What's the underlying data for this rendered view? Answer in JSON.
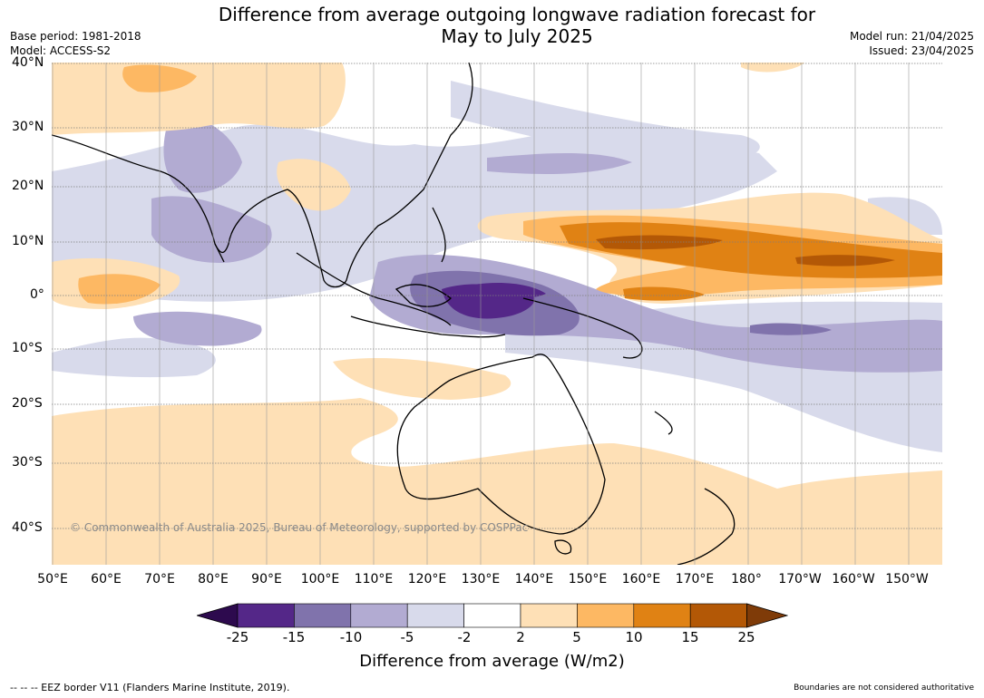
{
  "title": {
    "line1": "Difference from average outgoing longwave radiation forecast for",
    "line2": "May to July 2025"
  },
  "meta": {
    "base_period": "Base period: 1981-2018",
    "model": "Model: ACCESS-S2",
    "model_run": "Model run: 21/04/2025",
    "issued": "Issued: 23/04/2025"
  },
  "latitude_labels": [
    "40°N",
    "30°N",
    "20°N",
    "10°N",
    "0°",
    "10°S",
    "20°S",
    "30°S",
    "40°S"
  ],
  "longitude_labels": [
    "50°E",
    "60°E",
    "70°E",
    "80°E",
    "90°E",
    "100°E",
    "110°E",
    "120°E",
    "130°E",
    "140°E",
    "150°E",
    "160°E",
    "170°E",
    "180°",
    "170°W",
    "160°W",
    "150°W"
  ],
  "copyright": "© Commonwealth of Australia 2025, Bureau of Meteorology, supported by COSPPac",
  "colorbar": {
    "ticks": [
      "-25",
      "-15",
      "-10",
      "-5",
      "-2",
      "2",
      "5",
      "10",
      "15",
      "25"
    ],
    "colors": [
      "#2d0a4e",
      "#542788",
      "#8073ac",
      "#b2abd2",
      "#d8daeb",
      "#ffffff",
      "#fee0b6",
      "#fdb863",
      "#e08214",
      "#b35806",
      "#7f3b08"
    ],
    "label": "Difference from average (W/m2)"
  },
  "footer": {
    "eez_legend": "--  --  -- EEZ border V11 (Flanders Marine Institute, 2019).",
    "disclaimer": "Boundaries are not considered authoritative"
  }
}
